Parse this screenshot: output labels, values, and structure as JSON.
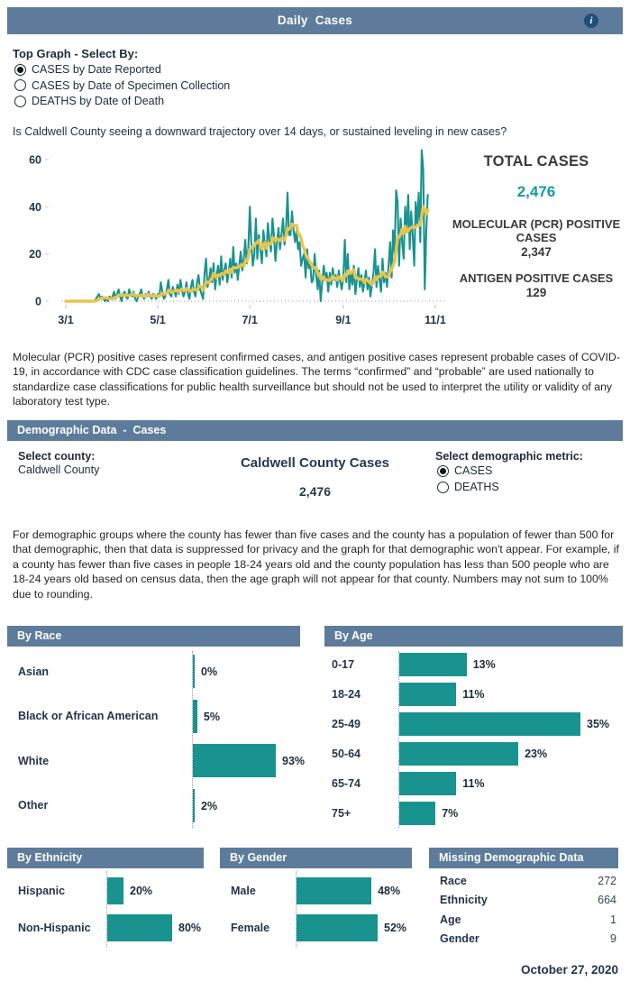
{
  "colors": {
    "header_bar": "#5D7C9B",
    "teal": "#18938F",
    "teal_number": "#139BA1",
    "yellow_average": "#E9C44C",
    "navy_text": "#24354D",
    "info_circle": "#1F4E79"
  },
  "header": {
    "title": "Daily  Cases",
    "info_icon": "i"
  },
  "top_controls": {
    "heading": "Top Graph - Select By:",
    "options": [
      {
        "label": "CASES by Date Reported",
        "selected": true
      },
      {
        "label": "CASES by Date of Specimen Collection",
        "selected": false
      },
      {
        "label": "DEATHS by Date of Death",
        "selected": false
      }
    ]
  },
  "question": "Is Caldwell County seeing a downward trajectory over 14 days, or sustained leveling in new cases?",
  "stats": {
    "total_label": "TOTAL CASES",
    "total_value": "2,476",
    "pcr_label": "MOLECULAR (PCR) POSITIVE CASES",
    "pcr_value": "2,347",
    "antigen_label": "ANTIGEN POSITIVE CASES",
    "antigen_value": "129"
  },
  "note1": "Molecular (PCR) positive cases represent confirmed cases, and antigen positive cases represent probable cases of COVID-19, in accordance with CDC case classification guidelines. The terms “confirmed” and “probable” are used nationally to standardize case classifications for public health surveillance but should not be used to interpret the utility or validity of any laboratory test type.",
  "demo": {
    "header": "Demographic Data  -  Cases",
    "select_county_label": "Select county:",
    "county_value": "Caldwell County",
    "center_title": "Caldwell County Cases",
    "center_value": "2,476",
    "metric_label": "Select demographic metric:",
    "metric_options": [
      {
        "label": "CASES",
        "selected": true
      },
      {
        "label": "DEATHS",
        "selected": false
      }
    ],
    "note2": "For demographic groups where the county has fewer than five cases and the county has a population of fewer than 500 for that demographic, then that data is suppressed for privacy and the graph for that demographic won't appear. For example, if a county has fewer than five cases in people 18-24 years old and the county population has less than 500 people who are 18-24 years old based on census data, then the age graph will not appear for that county. Numbers may not sum to 100% due to rounding."
  },
  "footer": {
    "date": "October 27, 2020"
  },
  "chart_data": [
    {
      "id": "daily-cases",
      "type": "line",
      "title": "Daily Cases by Date Reported",
      "x_ticks": [
        "3/1",
        "5/1",
        "7/1",
        "9/1",
        "11/1"
      ],
      "x_tick_days": [
        0,
        61,
        122,
        184,
        245
      ],
      "x_range_days": 245,
      "y_ticks": [
        0,
        20,
        40,
        60
      ],
      "ylim": [
        0,
        66
      ],
      "grid": "dotted zero line only",
      "legend": "none",
      "series": [
        {
          "name": "daily cases",
          "color": "#18938F",
          "start_date": "3/1",
          "end_date": "10/27",
          "values": [
            0,
            0,
            0,
            0,
            0,
            0,
            0,
            0,
            0,
            0,
            0,
            0,
            0,
            0,
            0,
            0,
            0,
            0,
            0,
            0,
            1,
            2,
            3,
            1,
            2,
            1,
            0,
            1,
            0,
            2,
            1,
            2,
            4,
            1,
            3,
            5,
            2,
            0,
            3,
            4,
            2,
            1,
            5,
            3,
            2,
            4,
            1,
            0,
            2,
            3,
            5,
            2,
            1,
            3,
            2,
            4,
            2,
            1,
            3,
            2,
            1,
            3,
            2,
            8,
            4,
            1,
            2,
            5,
            9,
            3,
            2,
            6,
            4,
            2,
            7,
            3,
            9,
            5,
            2,
            4,
            8,
            3,
            1,
            6,
            9,
            4,
            2,
            8,
            11,
            5,
            3,
            1,
            12,
            18,
            6,
            9,
            14,
            8,
            16,
            5,
            11,
            15,
            7,
            19,
            9,
            13,
            16,
            8,
            12,
            18,
            10,
            23,
            12,
            16,
            9,
            15,
            21,
            13,
            18,
            26,
            16,
            22,
            40,
            25,
            15,
            20,
            35,
            18,
            28,
            22,
            16,
            30,
            24,
            19,
            33,
            26,
            21,
            35,
            28,
            17,
            25,
            31,
            22,
            28,
            35,
            24,
            30,
            46,
            28,
            28,
            38,
            30,
            25,
            30,
            22,
            25,
            15,
            18,
            20,
            10,
            22,
            14,
            16,
            8,
            9,
            20,
            11,
            5,
            13,
            0,
            8,
            15,
            10,
            12,
            4,
            12,
            7,
            14,
            9,
            11,
            6,
            13,
            8,
            5,
            10,
            26,
            8,
            20,
            5,
            12,
            7,
            15,
            3,
            9,
            14,
            6,
            11,
            4,
            8,
            13,
            5,
            10,
            2,
            7,
            12,
            22,
            6,
            15,
            9,
            4,
            18,
            8,
            12,
            6,
            15,
            25,
            10,
            30,
            20,
            47,
            42,
            15,
            35,
            25,
            18,
            40,
            30,
            45,
            22,
            38,
            28,
            15,
            42,
            33,
            46,
            25,
            64,
            56,
            5,
            30,
            45
          ]
        },
        {
          "name": "7-day average",
          "color": "#E9C44C",
          "derived_from": "daily cases",
          "window": 7
        }
      ]
    },
    {
      "id": "by-race",
      "type": "bar",
      "title": "By Race",
      "categories": [
        "Asian",
        "Black or African American",
        "White",
        "Other"
      ],
      "values": [
        0,
        5,
        93,
        2
      ],
      "labels": [
        "0%",
        "5%",
        "93%",
        "2%"
      ]
    },
    {
      "id": "by-age",
      "type": "bar",
      "title": "By Age",
      "categories": [
        "0-17",
        "18-24",
        "25-49",
        "50-64",
        "65-74",
        "75+"
      ],
      "values": [
        13,
        11,
        35,
        23,
        11,
        7
      ],
      "labels": [
        "13%",
        "11%",
        "35%",
        "23%",
        "11%",
        "7%"
      ]
    },
    {
      "id": "by-ethnicity",
      "type": "bar",
      "title": "By Ethnicity",
      "categories": [
        "Hispanic",
        "Non-Hispanic"
      ],
      "values": [
        20,
        80
      ],
      "labels": [
        "20%",
        "80%"
      ]
    },
    {
      "id": "by-gender",
      "type": "bar",
      "title": "By Gender",
      "categories": [
        "Male",
        "Female"
      ],
      "values": [
        48,
        52
      ],
      "labels": [
        "48%",
        "52%"
      ]
    },
    {
      "id": "missing-demographic-data",
      "type": "table",
      "title": "Missing Demographic Data",
      "rows": [
        {
          "label": "Race",
          "value": "272"
        },
        {
          "label": "Ethnicity",
          "value": "664"
        },
        {
          "label": "Age",
          "value": "1"
        },
        {
          "label": "Gender",
          "value": "9"
        }
      ]
    }
  ]
}
